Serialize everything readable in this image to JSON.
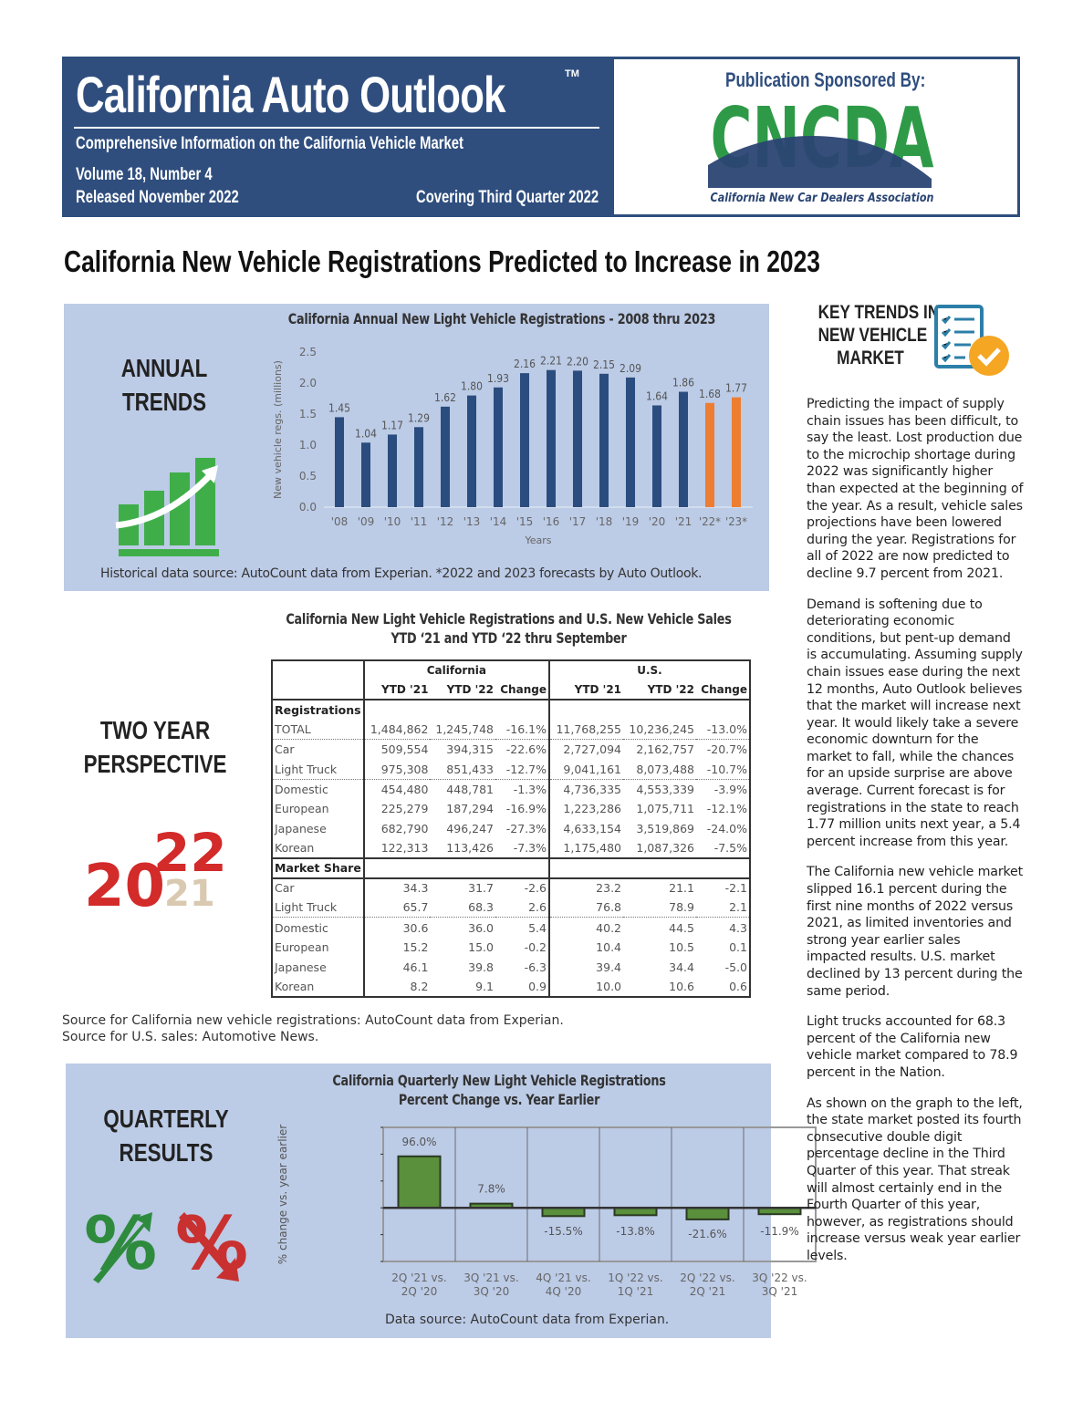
{
  "header": {
    "title": "California Auto Outlook",
    "trademark": "TM",
    "tagline": "Comprehensive Information on the California Vehicle Market",
    "volume": "Volume 18, Number 4",
    "released": "Released November 2022",
    "covering": "Covering Third Quarter 2022",
    "sponsor_label": "Publication Sponsored By:",
    "sponsor_logo": "CNCDA",
    "sponsor_name": "California New Car Dealers Association"
  },
  "headline": "California New Vehicle Registrations Predicted to Increase in 2023",
  "annual": {
    "section_label_1": "ANNUAL",
    "section_label_2": "TRENDS",
    "source": "Historical data source: AutoCount data from Experian. *2022 and 2023 forecasts by Auto Outlook."
  },
  "table": {
    "title_1": "California New Light Vehicle Registrations and U.S. New Vehicle Sales",
    "title_2": "YTD ‘21 and YTD ‘22 thru September",
    "group_ca": "California",
    "group_us": "U.S.",
    "columns": [
      "YTD '21",
      "YTD '22",
      "Change",
      "YTD '21",
      "YTD '22",
      "Change"
    ],
    "section_1": "Registrations",
    "section_2": "Market Share",
    "registrations": [
      [
        "TOTAL",
        "1,484,862",
        "1,245,748",
        "-16.1%",
        "11,768,255",
        "10,236,245",
        "-13.0%"
      ],
      [
        "Car",
        "509,554",
        "394,315",
        "-22.6%",
        "2,727,094",
        "2,162,757",
        "-20.7%"
      ],
      [
        "Light Truck",
        "975,308",
        "851,433",
        "-12.7%",
        "9,041,161",
        "8,073,488",
        "-10.7%"
      ],
      [
        "Domestic",
        "454,480",
        "448,781",
        "-1.3%",
        "4,736,335",
        "4,553,339",
        "-3.9%"
      ],
      [
        "European",
        "225,279",
        "187,294",
        "-16.9%",
        "1,223,286",
        "1,075,711",
        "-12.1%"
      ],
      [
        "Japanese",
        "682,790",
        "496,247",
        "-27.3%",
        "4,633,154",
        "3,519,869",
        "-24.0%"
      ],
      [
        "Korean",
        "122,313",
        "113,426",
        "-7.3%",
        "1,175,480",
        "1,087,326",
        "-7.5%"
      ]
    ],
    "market_share": [
      [
        "Car",
        "34.3",
        "31.7",
        "-2.6",
        "23.2",
        "21.1",
        "-2.1"
      ],
      [
        "Light Truck",
        "65.7",
        "68.3",
        "2.6",
        "76.8",
        "78.9",
        "2.1"
      ],
      [
        "Domestic",
        "30.6",
        "36.0",
        "5.4",
        "40.2",
        "44.5",
        "4.3"
      ],
      [
        "European",
        "15.2",
        "15.0",
        "-0.2",
        "10.4",
        "10.5",
        "0.1"
      ],
      [
        "Japanese",
        "46.1",
        "39.8",
        "-6.3",
        "39.4",
        "34.4",
        "-5.0"
      ],
      [
        "Korean",
        "8.2",
        "9.1",
        "0.9",
        "10.0",
        "10.6",
        "0.6"
      ]
    ]
  },
  "two_year": {
    "label_1": "TWO YEAR",
    "label_2": "PERSPECTIVE",
    "graphic_text": "2022"
  },
  "sources": {
    "line_1": "Source for California new vehicle registrations: AutoCount data from Experian.",
    "line_2": "Source for U.S. sales: Automotive News."
  },
  "quarterly": {
    "section_label_1": "QUARTERLY",
    "section_label_2": "RESULTS",
    "source": "Data source: AutoCount data from Experian."
  },
  "key_trends": {
    "title_1": "KEY TRENDS IN",
    "title_2": "NEW VEHICLE",
    "title_3": "MARKET",
    "paragraphs": [
      "Predicting the impact of supply chain issues has been difficult, to say the least. Lost production due to the microchip shortage during 2022 was significantly higher than expected at the beginning of the year. As a result, vehicle sales projections have been lowered during the year. Registrations for all of 2022 are now predicted to decline 9.7 percent from 2021.",
      "Demand is softening due to deteriorating economic conditions, but pent-up demand is accumulating. Assuming supply chain issues ease during the next 12 months, Auto Outlook believes that the market will increase next year. It would likely take a severe economic downturn for the market to fall, while the chances for an upside surprise are above average. Current forecast is for registrations in the state to reach 1.77 million units next year, a 5.4 percent increase from this year.",
      "The California new vehicle market slipped 16.1 percent during the first nine months of 2022 versus 2021, as limited inventories and strong year earlier sales impacted results. U.S. market declined by 13 percent during the same period.",
      "Light trucks accounted for 68.3 percent of the California new vehicle market compared to 78.9 percent in the Nation.",
      "As shown on the graph to the left, the state market posted its fourth consecutive double digit percentage decline in the Third Quarter of this year. That streak will almost certainly end in the Fourth Quarter of this year, however, as registrations should increase versus weak year earlier levels."
    ]
  },
  "colors": {
    "navy": "#2f4e7e",
    "panel": "#bccbe6",
    "bar_actual": "#2b4c7e",
    "bar_forecast": "#ed7d31",
    "bar_quarterly": "#5a8f3c",
    "logo_green": "#2e9a48"
  },
  "chart_data": [
    {
      "type": "bar",
      "title": "California Annual New Light Vehicle Registrations - 2008 thru 2023",
      "xlabel": "Years",
      "ylabel": "New vehicle regs. (millions)",
      "ylim": [
        0,
        2.5
      ],
      "yticks": [
        "0.0",
        "0.5",
        "1.0",
        "1.5",
        "2.0",
        "2.5"
      ],
      "categories": [
        "'08",
        "'09",
        "'10",
        "'11",
        "'12",
        "'13",
        "'14",
        "'15",
        "'16",
        "'17",
        "'18",
        "'19",
        "'20",
        "'21",
        "'22*",
        "'23*"
      ],
      "values": [
        1.45,
        1.04,
        1.17,
        1.29,
        1.62,
        1.8,
        1.93,
        2.16,
        2.21,
        2.2,
        2.15,
        2.09,
        1.64,
        1.86,
        1.68,
        1.77
      ],
      "labels": [
        "1.45",
        "1.04",
        "1.17",
        "1.29",
        "1.62",
        "1.80",
        "1.93",
        "2.16",
        "2.21",
        "2.20",
        "2.15",
        "2.09",
        "1.64",
        "1.86",
        "1.68",
        "1.77"
      ],
      "forecast": [
        false,
        false,
        false,
        false,
        false,
        false,
        false,
        false,
        false,
        false,
        false,
        false,
        false,
        false,
        true,
        true
      ],
      "grid": false
    },
    {
      "type": "bar",
      "title": "California Quarterly New Light Vehicle Registrations",
      "subtitle": "Percent Change vs. Year Earlier",
      "ylabel": "% change vs. year earlier",
      "ylim": [
        -100,
        150
      ],
      "grid": true,
      "categories": [
        [
          "2Q '21 vs.",
          "2Q '20"
        ],
        [
          "3Q '21 vs.",
          "3Q '20"
        ],
        [
          "4Q '21 vs.",
          "4Q '20"
        ],
        [
          "1Q '22 vs.",
          "1Q '21"
        ],
        [
          "2Q '22 vs.",
          "2Q '21"
        ],
        [
          "3Q '22 vs.",
          "3Q '21"
        ]
      ],
      "values": [
        96.0,
        7.8,
        -15.5,
        -13.8,
        -21.6,
        -11.9
      ],
      "labels": [
        "96.0%",
        "7.8%",
        "-15.5%",
        "-13.8%",
        "-21.6%",
        "-11.9%"
      ]
    }
  ]
}
